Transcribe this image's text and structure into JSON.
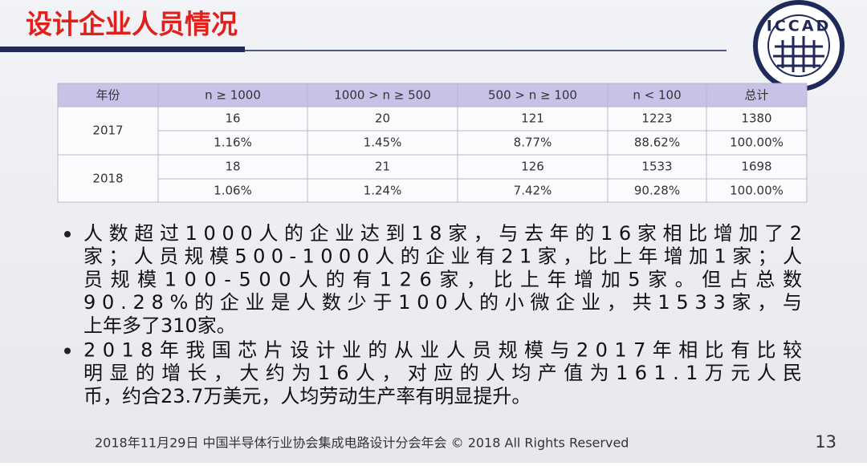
{
  "title": "设计企业人员情况",
  "logo": "ICCAD",
  "table": {
    "header": [
      "年份",
      "n ≥ 1000",
      "1000 > n ≥ 500",
      "500 > n ≥ 100",
      "n < 100",
      "总计"
    ],
    "rows": [
      {
        "year": "2017",
        "counts": [
          "16",
          "20",
          "121",
          "1223",
          "1380"
        ],
        "shares": [
          "1.16%",
          "1.45%",
          "8.77%",
          "88.62%",
          "100.00%"
        ]
      },
      {
        "year": "2018",
        "counts": [
          "18",
          "21",
          "126",
          "1533",
          "1698"
        ],
        "shares": [
          "1.06%",
          "1.24%",
          "7.42%",
          "90.28%",
          "100.00%"
        ]
      }
    ]
  },
  "bullets": [
    [
      "人数超过1000人的企业达到18家，与去年的16家相比增加了2",
      "家；人员规模500-1000人的企业有21家，比上年增加1家；人",
      "员规模100-500人的有126家，比上年增加5家。但占总数",
      "90.28%的企业是人数少于100人的小微企业，共1533家，与",
      "上年多了310家。"
    ],
    [
      "2018年我国芯片设计业的从业人员规模与2017年相比有比较",
      "明显的增长，大约为16人，对应的人均产值为161.1万元人民",
      "币，约合23.7万美元，人均劳动生产率有明显提升。"
    ]
  ],
  "footer": "2018年11月29日  中国半导体行业协会集成电路设计分会年会 © 2018 All Rights Reserved",
  "page_number": "13"
}
